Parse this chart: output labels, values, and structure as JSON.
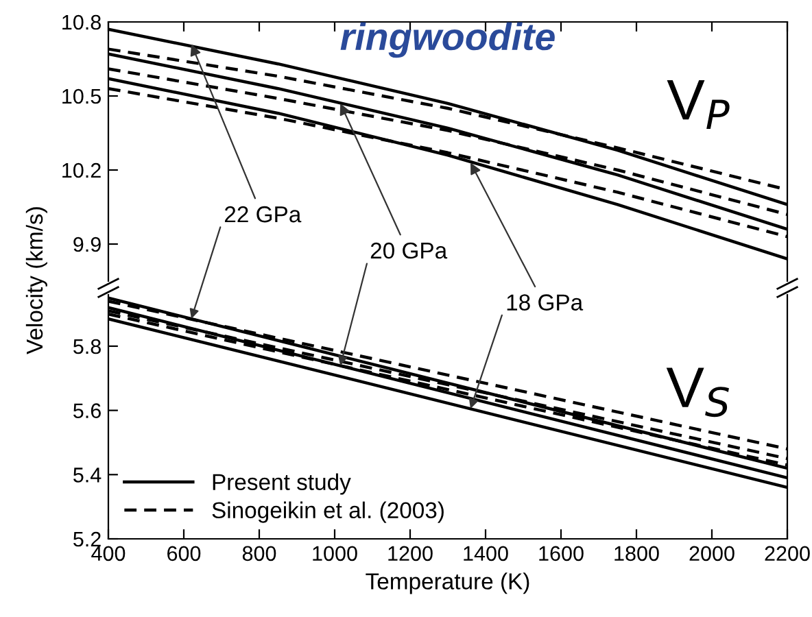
{
  "chart_data": [
    {
      "type": "line",
      "title": "ringwoodite",
      "ylabel": null,
      "x": [
        400,
        850,
        1300,
        1750,
        2200
      ],
      "xlim": [
        400,
        2200
      ],
      "xticks": [
        400,
        600,
        800,
        1000,
        1200,
        1400,
        1600,
        1800,
        2000,
        2200
      ],
      "ylim": [
        9.75,
        10.8
      ],
      "yticks": [
        9.9,
        10.2,
        10.5,
        10.8
      ],
      "tick_labels": "y",
      "grid": false,
      "legend": false,
      "series": [
        {
          "color": "#000000",
          "line_style": "solid",
          "values": [
            10.77,
            10.63,
            10.47,
            10.28,
            10.06
          ]
        },
        {
          "color": "#000000",
          "line_style": "solid",
          "values": [
            10.67,
            10.53,
            10.37,
            10.18,
            9.96
          ]
        },
        {
          "color": "#000000",
          "line_style": "solid",
          "values": [
            10.57,
            10.43,
            10.26,
            10.06,
            9.84
          ]
        },
        {
          "color": "#000000",
          "line_style": "dashed",
          "values": [
            10.69,
            10.58,
            10.45,
            10.29,
            10.12
          ]
        },
        {
          "color": "#000000",
          "line_style": "dashed",
          "values": [
            10.61,
            10.49,
            10.36,
            10.2,
            10.02
          ]
        },
        {
          "color": "#000000",
          "line_style": "dashed",
          "values": [
            10.53,
            10.41,
            10.27,
            10.11,
            9.93
          ]
        }
      ],
      "annotations": [
        {
          "text": "22 GPa",
          "x": 620,
          "y": 10.71
        },
        {
          "text": "20 GPa",
          "x": 1015,
          "y": 10.47
        },
        {
          "text": "18 GPa",
          "x": 1360,
          "y": 10.23
        },
        "V$_{P}$"
      ]
    },
    {
      "type": "line",
      "xlabel": "Temperature (K)",
      "ylabel": "Velocity (km/s)",
      "x": [
        400,
        2200
      ],
      "xlim": [
        400,
        2200
      ],
      "xticks": [
        400,
        600,
        800,
        1000,
        1200,
        1400,
        1600,
        1800,
        2000,
        2200
      ],
      "ylim": [
        5.2,
        5.96
      ],
      "yticks": [
        5.2,
        5.4,
        5.6,
        5.8
      ],
      "grid": false,
      "legend": "bottom left",
      "series": [
        {
          "name": "Present study",
          "color": "#000000",
          "line_style": "solid",
          "values": [
            5.95,
            5.42
          ]
        },
        {
          "color": "#000000",
          "line_style": "solid",
          "values": [
            5.92,
            5.39
          ]
        },
        {
          "color": "#000000",
          "line_style": "solid",
          "values": [
            5.885,
            5.36
          ]
        },
        {
          "name": "Sinogeikin et al. (2003)",
          "color": "#000000",
          "line_style": "dashed",
          "values": [
            5.94,
            5.48
          ]
        },
        {
          "color": "#000000",
          "line_style": "dashed",
          "values": [
            5.91,
            5.45
          ]
        },
        {
          "color": "#000000",
          "line_style": "dashed",
          "values": [
            5.9,
            5.43
          ]
        }
      ],
      "annotations": [
        "V$_{S}$"
      ]
    }
  ]
}
